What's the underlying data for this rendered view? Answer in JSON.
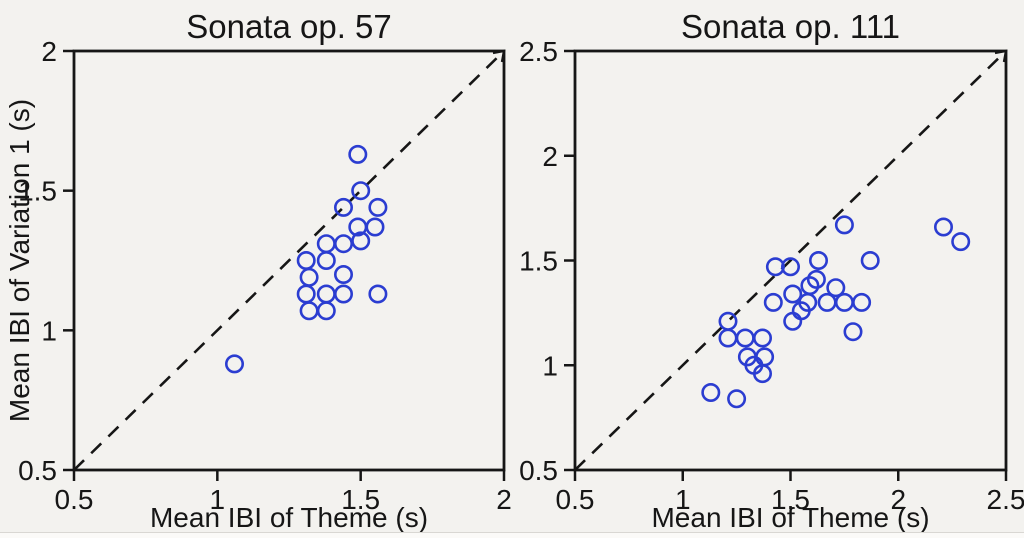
{
  "figure": {
    "background": "#f3f2ef",
    "axis_color": "#161616",
    "marker_color": "#2b3dd1"
  },
  "chart_data": [
    {
      "type": "scatter",
      "title": "Sonata op. 57",
      "xlabel": "Mean IBI of Theme (s)",
      "ylabel": "Mean IBI of Variation 1 (s)",
      "xlim": [
        0.5,
        2
      ],
      "ylim": [
        0.5,
        2
      ],
      "xticks": [
        0.5,
        1,
        1.5,
        2
      ],
      "xtick_labels": [
        "0.5",
        "1",
        "1.5",
        "2"
      ],
      "yticks": [
        0.5,
        1,
        1.5,
        2
      ],
      "ytick_labels": [
        "0.5",
        "1",
        "1.5",
        "2"
      ],
      "grid": false,
      "identity_line": true,
      "marker": "open-circle",
      "points": [
        [
          1.06,
          0.88
        ],
        [
          1.32,
          1.07
        ],
        [
          1.38,
          1.07
        ],
        [
          1.31,
          1.13
        ],
        [
          1.38,
          1.13
        ],
        [
          1.44,
          1.13
        ],
        [
          1.56,
          1.13
        ],
        [
          1.32,
          1.19
        ],
        [
          1.44,
          1.2
        ],
        [
          1.31,
          1.25
        ],
        [
          1.38,
          1.25
        ],
        [
          1.38,
          1.31
        ],
        [
          1.44,
          1.31
        ],
        [
          1.5,
          1.32
        ],
        [
          1.49,
          1.37
        ],
        [
          1.55,
          1.37
        ],
        [
          1.44,
          1.44
        ],
        [
          1.56,
          1.44
        ],
        [
          1.5,
          1.5
        ],
        [
          1.49,
          1.63
        ]
      ]
    },
    {
      "type": "scatter",
      "title": "Sonata op. 111",
      "xlabel": "Mean IBI of Theme (s)",
      "ylabel": "",
      "xlim": [
        0.5,
        2.5
      ],
      "ylim": [
        0.5,
        2.5
      ],
      "xticks": [
        0.5,
        1,
        1.5,
        2,
        2.5
      ],
      "xtick_labels": [
        "0.5",
        "1",
        "1.5",
        "2",
        "2.5"
      ],
      "yticks": [
        0.5,
        1,
        1.5,
        2,
        2.5
      ],
      "ytick_labels": [
        "0.5",
        "1",
        "1.5",
        "2",
        "2.5"
      ],
      "grid": false,
      "identity_line": true,
      "marker": "open-circle",
      "points": [
        [
          1.13,
          0.87
        ],
        [
          1.25,
          0.84
        ],
        [
          1.33,
          1.0
        ],
        [
          1.3,
          1.04
        ],
        [
          1.38,
          1.04
        ],
        [
          1.37,
          0.96
        ],
        [
          1.21,
          1.13
        ],
        [
          1.29,
          1.13
        ],
        [
          1.37,
          1.13
        ],
        [
          1.21,
          1.21
        ],
        [
          1.51,
          1.21
        ],
        [
          1.79,
          1.16
        ],
        [
          1.55,
          1.26
        ],
        [
          1.42,
          1.3
        ],
        [
          1.58,
          1.3
        ],
        [
          1.67,
          1.3
        ],
        [
          1.75,
          1.3
        ],
        [
          1.83,
          1.3
        ],
        [
          1.51,
          1.34
        ],
        [
          1.59,
          1.38
        ],
        [
          1.71,
          1.37
        ],
        [
          1.62,
          1.41
        ],
        [
          1.43,
          1.47
        ],
        [
          1.5,
          1.47
        ],
        [
          1.63,
          1.5
        ],
        [
          1.87,
          1.5
        ],
        [
          1.75,
          1.67
        ],
        [
          2.21,
          1.66
        ],
        [
          2.29,
          1.59
        ]
      ]
    }
  ]
}
